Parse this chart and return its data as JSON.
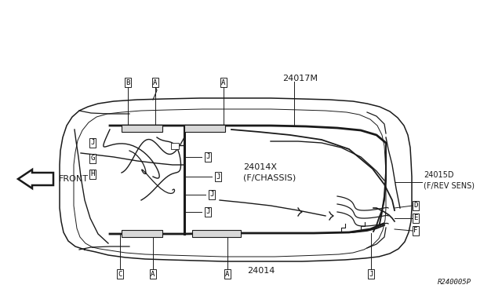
{
  "bg_color": "#ffffff",
  "line_color": "#1a1a1a",
  "figsize": [
    6.4,
    3.72
  ],
  "dpi": 100,
  "title_ref": "R240005P",
  "part_24014": "24014",
  "part_24017M": "24017M",
  "part_24014X": "24014X\n(F/CHASSIS)",
  "part_24015D": "24015D\n(F/REV SENS)",
  "front_label": "FRONT"
}
